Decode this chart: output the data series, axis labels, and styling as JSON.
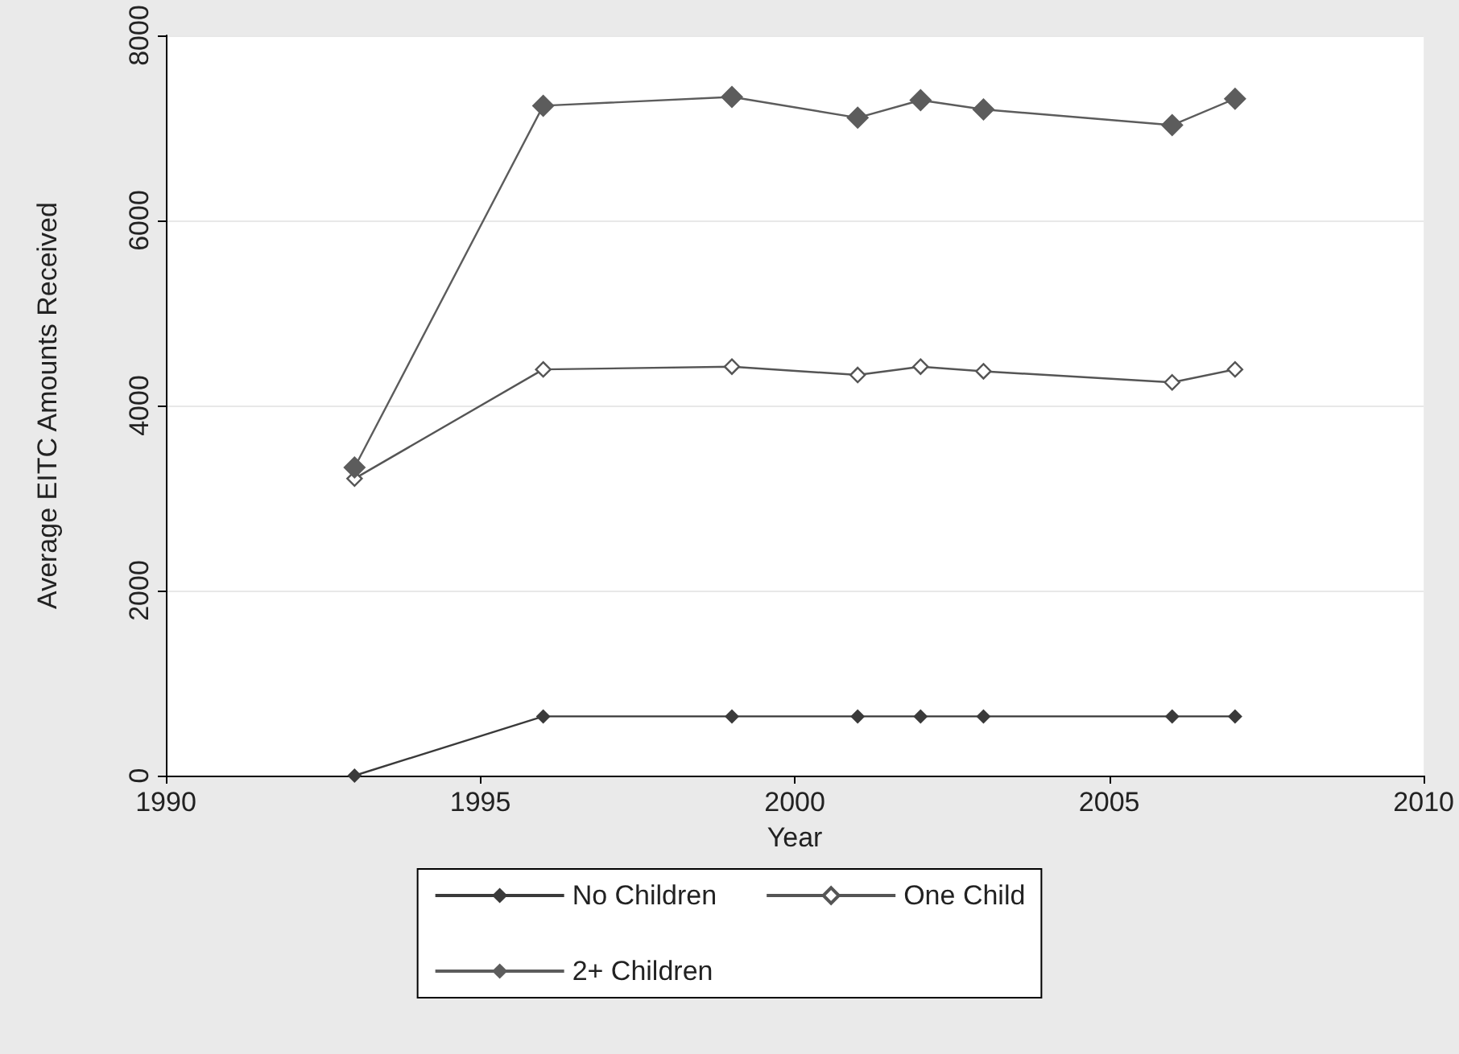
{
  "chart_data": {
    "type": "line",
    "xlabel": "Year",
    "ylabel": "Average EITC Amounts Received",
    "x": [
      1993,
      1996,
      1999,
      2001,
      2002,
      2003,
      2006,
      2007
    ],
    "series": [
      {
        "name": "No Children",
        "color": "#3a3a3a",
        "values": [
          0,
          640,
          640,
          640,
          640,
          640,
          640,
          640
        ]
      },
      {
        "name": "One Child",
        "color": "#555555",
        "values": [
          3210,
          4390,
          4420,
          4330,
          4420,
          4370,
          4250,
          4390
        ]
      },
      {
        "name": "2+ Children",
        "color": "#5c5c5c",
        "values": [
          3330,
          7240,
          7335,
          7110,
          7300,
          7200,
          7030,
          7315
        ]
      }
    ],
    "xlim": [
      1990,
      2010
    ],
    "xticks": [
      1990,
      1995,
      2000,
      2005,
      2010
    ],
    "ylim": [
      0,
      8000
    ],
    "yticks": [
      0,
      2000,
      4000,
      6000,
      8000
    ],
    "grid": "y",
    "legend": "bottom",
    "marker": "diamond",
    "line_style": "solid"
  }
}
